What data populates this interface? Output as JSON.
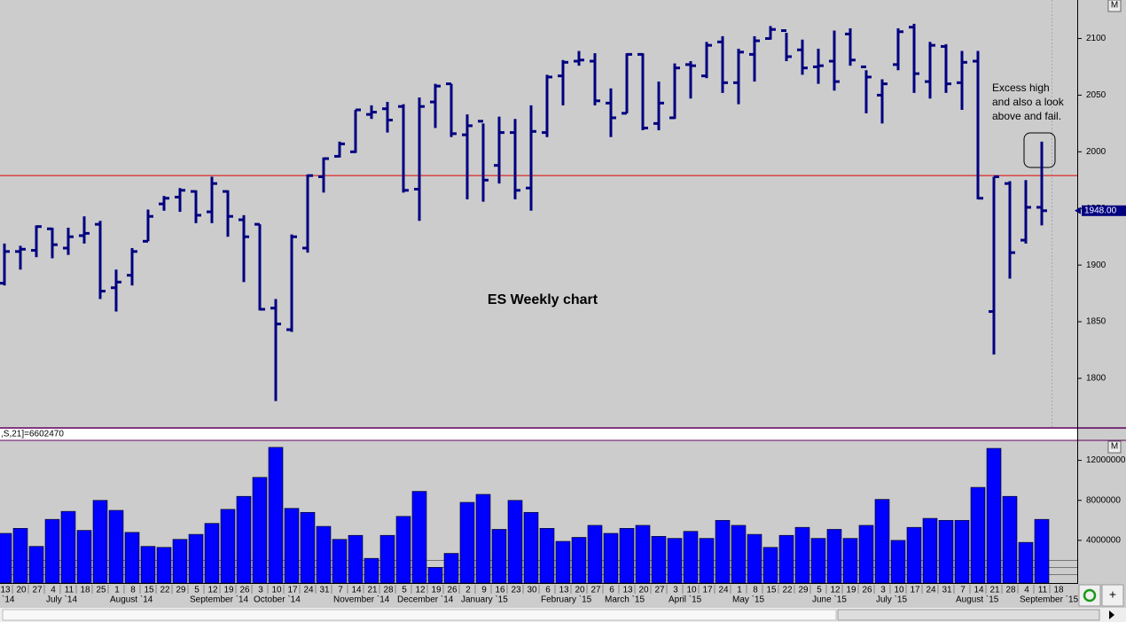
{
  "chart_data": {
    "type": "ohlc",
    "title": "ES Weekly chart",
    "annotation": [
      "Excess high",
      "and also a look",
      "above and fail."
    ],
    "categories": [
      "13",
      "20",
      "27",
      "4",
      "11",
      "18",
      "25",
      "1",
      "8",
      "15",
      "22",
      "29",
      "5",
      "12",
      "19",
      "26",
      "3",
      "10",
      "17",
      "24",
      "31",
      "7",
      "14",
      "21",
      "28",
      "5",
      "12",
      "19",
      "26",
      "2",
      "9",
      "16",
      "23",
      "30",
      "6",
      "13",
      "20",
      "27",
      "6",
      "13",
      "20",
      "27",
      "3",
      "10",
      "17",
      "24",
      "1",
      "8",
      "15",
      "22",
      "29",
      "5",
      "12",
      "19",
      "26",
      "3",
      "10",
      "17",
      "24",
      "31",
      "7",
      "14",
      "21",
      "28",
      "4",
      "11",
      "18"
    ],
    "month_labels": [
      "`14",
      null,
      null,
      "July `14",
      null,
      null,
      null,
      "August `14",
      null,
      null,
      null,
      null,
      "September `14",
      null,
      null,
      null,
      "October `14",
      null,
      null,
      null,
      null,
      "November `14",
      null,
      null,
      null,
      "December `14",
      null,
      null,
      null,
      "January `15",
      null,
      null,
      null,
      null,
      "February `15",
      null,
      null,
      null,
      "March `15",
      null,
      null,
      null,
      "April `15",
      null,
      null,
      null,
      "May `15",
      null,
      null,
      null,
      null,
      "June `15",
      null,
      null,
      null,
      "July `15",
      null,
      null,
      null,
      null,
      "August `15",
      null,
      null,
      null,
      "September `15",
      null,
      null
    ],
    "ohlc": {
      "color": "#000080",
      "open": [
        1884,
        1912,
        1913,
        1932,
        1915,
        1926,
        1936,
        1880,
        1891,
        1921,
        1954,
        1960,
        1965,
        1947,
        1965,
        1940,
        1936,
        1862,
        1843,
        1915,
        1978,
        1996,
        2000,
        2033,
        2038,
        2040,
        1967,
        2044,
        2060,
        2015,
        2027,
        1988,
        2017,
        1968,
        2017,
        2067,
        2080,
        2080,
        2043,
        2034,
        2086,
        2025,
        2030,
        2077,
        2067,
        2097,
        2061,
        2086,
        2100,
        2107,
        2090,
        2075,
        2080,
        2104,
        2075,
        2050,
        2077,
        2110,
        2062,
        2093,
        2061,
        2080,
        1859,
        1972,
        1922,
        1951,
        null
      ],
      "high": [
        1919,
        1917,
        1935,
        1933,
        1933,
        1943,
        1939,
        1896,
        1915,
        1949,
        1961,
        1968,
        1966,
        1978,
        1966,
        1944,
        1936,
        1870,
        1927,
        1980,
        1995,
        2009,
        2037,
        2041,
        2044,
        2042,
        2048,
        2060,
        2060,
        2033,
        2025,
        2031,
        2029,
        2041,
        2068,
        2081,
        2089,
        2087,
        2056,
        2087,
        2087,
        2062,
        2078,
        2080,
        2097,
        2102,
        2091,
        2102,
        2111,
        2105,
        2099,
        2091,
        2107,
        2109,
        2072,
        2064,
        2109,
        2113,
        2097,
        2095,
        2089,
        2089,
        1978,
        1974,
        1975,
        2009,
        null
      ],
      "low": [
        1882,
        1896,
        1907,
        1906,
        1909,
        1919,
        1870,
        1859,
        1882,
        1921,
        1948,
        1947,
        1937,
        1937,
        1925,
        1885,
        1860,
        1780,
        1841,
        1911,
        1964,
        1995,
        1999,
        2029,
        2017,
        1964,
        1939,
        2021,
        2013,
        1958,
        1956,
        1972,
        1958,
        1948,
        2013,
        2041,
        2076,
        2041,
        2013,
        2034,
        2019,
        2019,
        2029,
        2047,
        2065,
        2052,
        2042,
        2062,
        2099,
        2080,
        2068,
        2060,
        2054,
        2076,
        2034,
        2025,
        2072,
        2052,
        2047,
        2052,
        2037,
        1958,
        1821,
        1888,
        1919,
        1935,
        null
      ],
      "close": [
        1912,
        1914,
        1934,
        1918,
        1925,
        1928,
        1877,
        1885,
        1912,
        1943,
        1959,
        1966,
        1944,
        1972,
        1943,
        1925,
        1861,
        1848,
        1925,
        1979,
        1994,
        2007,
        2037,
        2035,
        2028,
        1966,
        2040,
        2058,
        2016,
        2023,
        1975,
        2017,
        1966,
        2018,
        2066,
        2079,
        2081,
        2045,
        2030,
        2086,
        2021,
        2043,
        2074,
        2076,
        2094,
        2061,
        2088,
        2098,
        2108,
        2084,
        2074,
        2076,
        2062,
        2081,
        2066,
        2060,
        2106,
        2069,
        2094,
        2060,
        2079,
        1959,
        1978,
        1911,
        1951,
        1948,
        null
      ]
    },
    "ylim": [
      1757,
      2134
    ],
    "yticks": [
      1800,
      1850,
      1900,
      1950,
      2000,
      2050,
      2100
    ],
    "reference_line": {
      "value": 1979,
      "color": "#e00000"
    },
    "last_price": {
      "value": 1948,
      "label": "1948.00"
    },
    "volume": {
      "indicator_label": ",S,21]=6602470",
      "color": "#0000ff",
      "values": [
        4700000,
        5200000,
        3400000,
        6100000,
        6900000,
        5000000,
        8000000,
        7000000,
        4800000,
        3400000,
        3300000,
        4100000,
        4600000,
        5700000,
        7100000,
        8400000,
        10300000,
        13300000,
        7200000,
        6800000,
        5400000,
        4100000,
        4500000,
        2200000,
        4500000,
        6400000,
        8900000,
        1300000,
        2700000,
        7800000,
        8600000,
        5100000,
        8000000,
        6800000,
        5200000,
        3900000,
        4300000,
        5500000,
        4700000,
        5200000,
        5500000,
        4400000,
        4200000,
        4900000,
        4200000,
        6000000,
        5500000,
        4600000,
        3300000,
        4500000,
        5300000,
        4200000,
        5100000,
        4200000,
        5500000,
        8100000,
        4000000,
        5300000,
        6200000,
        6000000,
        6000000,
        9300000,
        13200000,
        8400000,
        3800000,
        6100000,
        null
      ],
      "ylim": [
        0,
        14000000
      ],
      "yticks": [
        4000000,
        8000000,
        12000000
      ]
    }
  }
}
